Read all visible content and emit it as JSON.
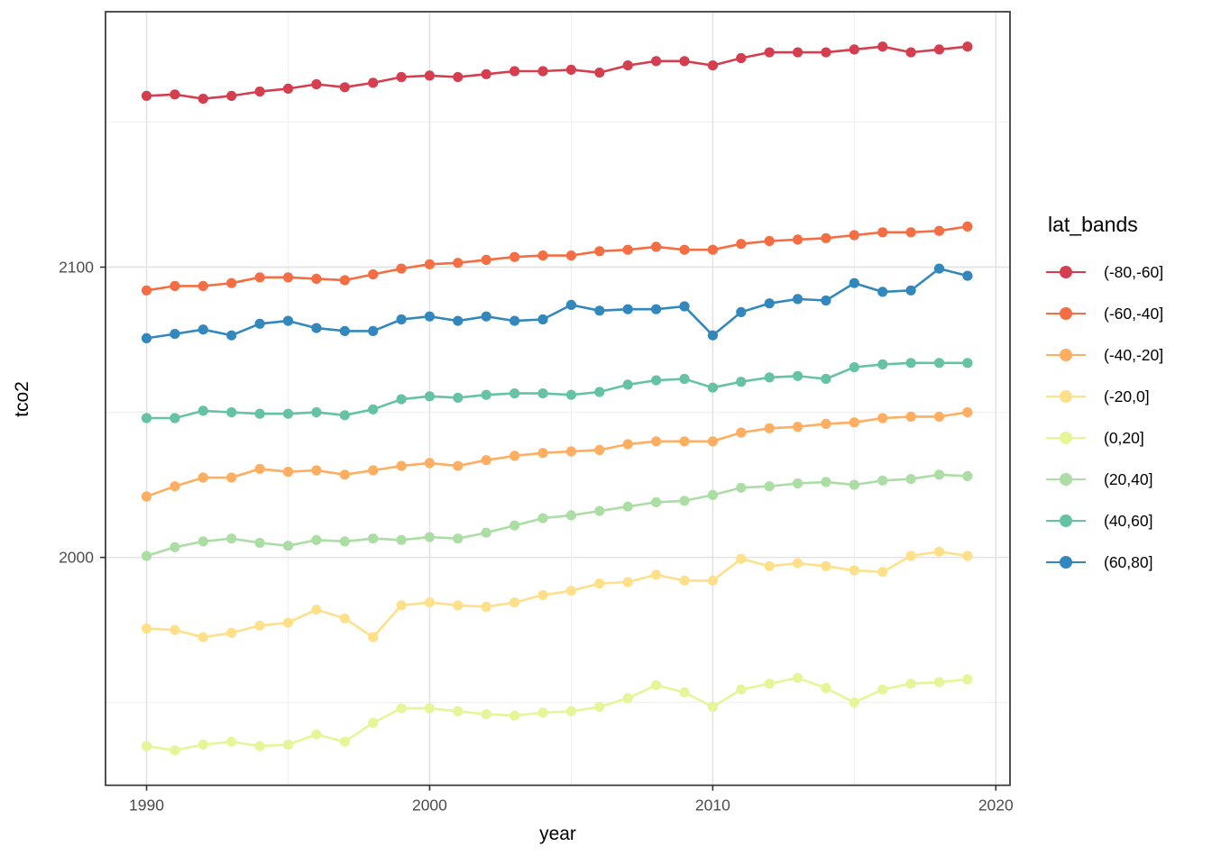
{
  "figure": {
    "background": "#ffffff",
    "panel": {
      "border_color": "#333333",
      "background": "#ffffff",
      "grid_major_color": "#e3e3e3",
      "grid_minor_color": "#f0f0f0",
      "tick_color": "#333333",
      "tick_label_color": "#4d4d4d"
    }
  },
  "legend": {
    "title": "lat_bands",
    "items": [
      {
        "label": "(-80,-60]",
        "color": "#d53e4f"
      },
      {
        "label": "(-60,-40]",
        "color": "#f46d43"
      },
      {
        "label": "(-40,-20]",
        "color": "#fdae61"
      },
      {
        "label": "(-20,0]",
        "color": "#fee08b"
      },
      {
        "label": "(0,20]",
        "color": "#e6f598"
      },
      {
        "label": "(20,40]",
        "color": "#abdda4"
      },
      {
        "label": "(40,60]",
        "color": "#66c2a5"
      },
      {
        "label": "(60,80]",
        "color": "#3288bd"
      }
    ]
  },
  "chart_data": {
    "type": "line",
    "title": "",
    "xlabel": "year",
    "ylabel": "tco2",
    "legend_title": "lat_bands",
    "legend_position": "right",
    "grid": true,
    "marker": "point",
    "xlim": [
      1988.55,
      2020.5
    ],
    "ylim": [
      1921.5,
      2188
    ],
    "x_ticks": [
      1990,
      2000,
      2010,
      2020
    ],
    "x_minor": [
      1995,
      2005,
      2015
    ],
    "y_ticks": [
      2000,
      2100
    ],
    "y_minor": [
      1950,
      2050,
      2150
    ],
    "x": [
      1990,
      1991,
      1992,
      1993,
      1994,
      1995,
      1996,
      1997,
      1998,
      1999,
      2000,
      2001,
      2002,
      2003,
      2004,
      2005,
      2006,
      2007,
      2008,
      2009,
      2010,
      2011,
      2012,
      2013,
      2014,
      2015,
      2016,
      2017,
      2018,
      2019
    ],
    "series": [
      {
        "name": "(-80,-60]",
        "color": "#d53e4f",
        "values": [
          2159,
          2159.5,
          2158,
          2159,
          2160.5,
          2161.5,
          2163,
          2162,
          2163.5,
          2165.5,
          2166,
          2165.5,
          2166.5,
          2167.5,
          2167.5,
          2168,
          2167,
          2169.5,
          2171,
          2171,
          2169.5,
          2172,
          2174,
          2174,
          2174,
          2175,
          2176,
          2174,
          2175,
          2176
        ]
      },
      {
        "name": "(-60,-40]",
        "color": "#f46d43",
        "values": [
          2092,
          2093.5,
          2093.5,
          2094.5,
          2096.5,
          2096.5,
          2096,
          2095.5,
          2097.5,
          2099.5,
          2101,
          2101.5,
          2102.5,
          2103.5,
          2104,
          2104,
          2105.5,
          2106,
          2107,
          2106,
          2106,
          2108,
          2109,
          2109.5,
          2110,
          2111,
          2112,
          2112,
          2112.5,
          2114
        ]
      },
      {
        "name": "(-40,-20]",
        "color": "#fdae61",
        "values": [
          2021,
          2024.5,
          2027.5,
          2027.5,
          2030.5,
          2029.5,
          2030,
          2028.5,
          2030,
          2031.5,
          2032.5,
          2031.5,
          2033.5,
          2035,
          2036,
          2036.5,
          2037,
          2039,
          2040,
          2040,
          2040,
          2043,
          2044.5,
          2045,
          2046,
          2046.5,
          2048,
          2048.5,
          2048.5,
          2050
        ]
      },
      {
        "name": "(-20,0]",
        "color": "#fee08b",
        "values": [
          1975.5,
          1975,
          1972.5,
          1974,
          1976.5,
          1977.5,
          1982,
          1979,
          1972.5,
          1983.5,
          1984.5,
          1983.5,
          1983,
          1984.5,
          1987,
          1988.5,
          1991,
          1991.5,
          1994,
          1992,
          1992,
          1999.5,
          1997,
          1998,
          1997,
          1995.5,
          1995,
          2000.5,
          2002,
          2000.5
        ]
      },
      {
        "name": "(0,20]",
        "color": "#e6f598",
        "values": [
          1935,
          1933.5,
          1935.5,
          1936.5,
          1935,
          1935.5,
          1939,
          1936.5,
          1943,
          1948,
          1948,
          1947,
          1946,
          1945.5,
          1946.5,
          1947,
          1948.5,
          1951.5,
          1956,
          1953.5,
          1948.5,
          1954.5,
          1956.5,
          1958.5,
          1955,
          1950,
          1954.5,
          1956.5,
          1957,
          1958
        ]
      },
      {
        "name": "(20,40]",
        "color": "#abdda4",
        "values": [
          2000.5,
          2003.5,
          2005.5,
          2006.5,
          2005,
          2004,
          2006,
          2005.5,
          2006.5,
          2006,
          2007,
          2006.5,
          2008.5,
          2011,
          2013.5,
          2014.5,
          2016,
          2017.5,
          2019,
          2019.5,
          2021.5,
          2024,
          2024.5,
          2025.5,
          2026,
          2025,
          2026.5,
          2027,
          2028.5,
          2028
        ]
      },
      {
        "name": "(40,60]",
        "color": "#66c2a5",
        "values": [
          2048,
          2048,
          2050.5,
          2050,
          2049.5,
          2049.5,
          2050,
          2049,
          2051,
          2054.5,
          2055.5,
          2055,
          2056,
          2056.5,
          2056.5,
          2056,
          2057,
          2059.5,
          2061,
          2061.5,
          2058.5,
          2060.5,
          2062,
          2062.5,
          2061.5,
          2065.5,
          2066.5,
          2067,
          2067,
          2067
        ]
      },
      {
        "name": "(60,80]",
        "color": "#3288bd",
        "values": [
          2075.5,
          2077,
          2078.5,
          2076.5,
          2080.5,
          2081.5,
          2079,
          2078,
          2078,
          2082,
          2083,
          2081.5,
          2083,
          2081.5,
          2082,
          2087,
          2085,
          2085.5,
          2085.5,
          2086.5,
          2076.5,
          2084.5,
          2087.5,
          2089,
          2088.5,
          2094.5,
          2091.5,
          2092,
          2099.5,
          2097
        ]
      }
    ]
  }
}
